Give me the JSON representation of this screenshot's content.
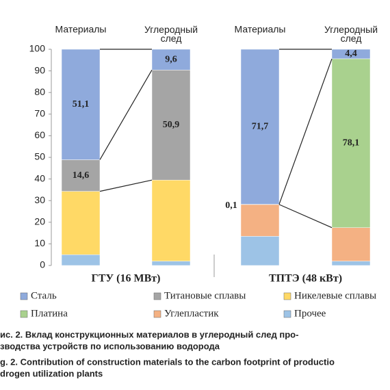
{
  "chart_data": {
    "type": "stacked_bar",
    "categories": [
      "Материалы",
      "Углеродный след",
      "Материалы",
      "Углеродный след"
    ],
    "groups": [
      "ГТУ (16 МВт)",
      "ТПТЭ (48 кВт)"
    ],
    "series": [
      {
        "name": "Сталь",
        "color": "#8faadc",
        "values": [
          51.1,
          9.6,
          71.7,
          4.4
        ],
        "value_labels": [
          "51,1",
          "9,6",
          "71,7",
          "4,4"
        ]
      },
      {
        "name": "Титановые сплавы",
        "color": "#a5a5a5",
        "values": [
          14.6,
          50.9,
          null,
          null
        ],
        "value_labels": [
          "14,6",
          "50,9",
          null,
          null
        ]
      },
      {
        "name": "Никелевые сплавы",
        "color": "#ffd966",
        "values": [
          29.3,
          37.5,
          null,
          null
        ]
      },
      {
        "name": "Платина",
        "color": "#a9d18e",
        "values": [
          null,
          null,
          0.1,
          78.1
        ],
        "value_labels": [
          null,
          null,
          "0,1",
          "78,1"
        ]
      },
      {
        "name": "Углепластик",
        "color": "#f4b183",
        "values": [
          null,
          null,
          14.7,
          15.5
        ]
      },
      {
        "name": "Прочее",
        "color": "#9dc3e6",
        "values": [
          5,
          2,
          13.5,
          2
        ]
      }
    ],
    "ylim": [
      0,
      100
    ],
    "yticks": [
      0,
      10,
      20,
      30,
      40,
      50,
      60,
      70,
      80,
      90,
      100
    ],
    "caption": [
      "ис. 2. Вклад конструкционных материалов в углеродный след про-",
      "зводства устройств по использованию водорода",
      "g. 2. Contribution of construction materials to the carbon footprint of productio",
      "drogen utilization plants"
    ]
  }
}
